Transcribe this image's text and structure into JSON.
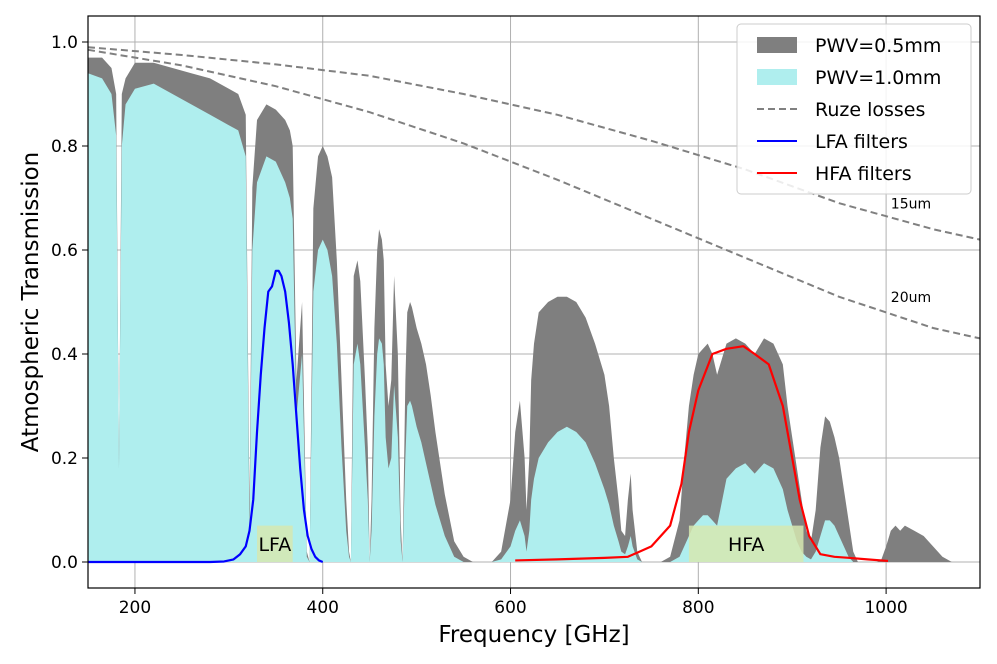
{
  "chart_data": {
    "type": "area",
    "xlabel": "Frequency [GHz]",
    "ylabel": "Atmospheric Transmission",
    "xlim": [
      150,
      1100
    ],
    "ylim": [
      -0.05,
      1.05
    ],
    "xticks": [
      200,
      400,
      600,
      800,
      1000
    ],
    "yticks": [
      0.0,
      0.2,
      0.4,
      0.6,
      0.8,
      1.0
    ],
    "xtick_labels": [
      "200",
      "400",
      "600",
      "800",
      "1000"
    ],
    "ytick_labels": [
      "0.0",
      "0.2",
      "0.4",
      "0.6",
      "0.8",
      "1.0"
    ],
    "grid": true,
    "legend_position": "top-right",
    "legend": [
      {
        "label": "PWV=0.5mm",
        "kind": "patch",
        "color": "#7f7f7f"
      },
      {
        "label": "PWV=1.0mm",
        "kind": "patch",
        "color": "#afeeee"
      },
      {
        "label": "Ruze losses",
        "kind": "dashed-line",
        "color": "#808080"
      },
      {
        "label": "LFA filters",
        "kind": "line",
        "color": "#0000ff"
      },
      {
        "label": "HFA filters",
        "kind": "line",
        "color": "#ff0000"
      }
    ],
    "series": [
      {
        "name": "PWV=0.5mm",
        "type": "area",
        "color": "#7f7f7f",
        "x": [
          150,
          165,
          175,
          180,
          183,
          186,
          190,
          200,
          220,
          240,
          260,
          280,
          300,
          310,
          318,
          322,
          325,
          330,
          340,
          350,
          360,
          365,
          368,
          372,
          378,
          383,
          386,
          390,
          395,
          400,
          405,
          410,
          415,
          420,
          425,
          428,
          430,
          433,
          437,
          440,
          445,
          448,
          450,
          452,
          455,
          458,
          460,
          463,
          465,
          467,
          470,
          473,
          476,
          480,
          483,
          485,
          488,
          490,
          493,
          495,
          500,
          505,
          510,
          515,
          520,
          530,
          540,
          550,
          560,
          570,
          580,
          590,
          600,
          605,
          610,
          615,
          617,
          620,
          622,
          625,
          630,
          640,
          650,
          660,
          670,
          680,
          690,
          700,
          705,
          710,
          715,
          718,
          722,
          725,
          728,
          730,
          735,
          740,
          750,
          760,
          770,
          780,
          785,
          790,
          795,
          800,
          805,
          810,
          815,
          820,
          830,
          840,
          850,
          860,
          870,
          880,
          890,
          895,
          900,
          905,
          910,
          915,
          920,
          925,
          930,
          935,
          940,
          945,
          950,
          955,
          960,
          965,
          970,
          980,
          990,
          995,
          1000,
          1005,
          1010,
          1015,
          1020,
          1030,
          1040,
          1050,
          1060,
          1065,
          1070,
          1080,
          1100
        ],
        "values": [
          0.97,
          0.97,
          0.95,
          0.9,
          0.18,
          0.9,
          0.93,
          0.96,
          0.96,
          0.95,
          0.94,
          0.93,
          0.91,
          0.9,
          0.86,
          0.1,
          0.72,
          0.85,
          0.88,
          0.87,
          0.85,
          0.83,
          0.8,
          0.35,
          0.5,
          0.02,
          0.0,
          0.68,
          0.78,
          0.8,
          0.78,
          0.74,
          0.58,
          0.35,
          0.12,
          0.02,
          0.0,
          0.55,
          0.58,
          0.54,
          0.35,
          0.22,
          0.0,
          0.12,
          0.45,
          0.6,
          0.64,
          0.62,
          0.58,
          0.38,
          0.3,
          0.35,
          0.55,
          0.4,
          0.08,
          0.0,
          0.35,
          0.48,
          0.5,
          0.49,
          0.45,
          0.42,
          0.38,
          0.32,
          0.25,
          0.13,
          0.04,
          0.01,
          0.0,
          0.0,
          0.0,
          0.02,
          0.12,
          0.25,
          0.31,
          0.2,
          0.1,
          0.2,
          0.35,
          0.42,
          0.48,
          0.5,
          0.51,
          0.51,
          0.5,
          0.47,
          0.42,
          0.36,
          0.3,
          0.2,
          0.12,
          0.06,
          0.05,
          0.12,
          0.17,
          0.1,
          0.02,
          0.0,
          0.0,
          0.0,
          0.01,
          0.08,
          0.2,
          0.3,
          0.36,
          0.4,
          0.41,
          0.42,
          0.4,
          0.36,
          0.42,
          0.43,
          0.42,
          0.4,
          0.43,
          0.42,
          0.38,
          0.3,
          0.24,
          0.18,
          0.12,
          0.06,
          0.04,
          0.1,
          0.22,
          0.28,
          0.27,
          0.24,
          0.2,
          0.14,
          0.08,
          0.02,
          0.0,
          0.0,
          0.0,
          0.005,
          0.03,
          0.06,
          0.07,
          0.06,
          0.07,
          0.06,
          0.05,
          0.03,
          0.01,
          0.005,
          0.0,
          0.0,
          0.0
        ]
      },
      {
        "name": "PWV=1.0mm",
        "type": "area",
        "color": "#afeeee",
        "x": [
          150,
          165,
          175,
          180,
          183,
          186,
          190,
          200,
          220,
          240,
          260,
          280,
          300,
          310,
          318,
          322,
          325,
          330,
          340,
          350,
          360,
          365,
          368,
          372,
          378,
          383,
          386,
          390,
          395,
          400,
          405,
          410,
          415,
          420,
          425,
          428,
          430,
          433,
          437,
          440,
          445,
          448,
          450,
          452,
          455,
          458,
          460,
          463,
          465,
          467,
          470,
          473,
          476,
          480,
          483,
          485,
          488,
          490,
          493,
          495,
          500,
          505,
          510,
          515,
          520,
          530,
          540,
          550,
          560,
          570,
          580,
          590,
          600,
          605,
          610,
          615,
          617,
          620,
          622,
          625,
          630,
          640,
          650,
          660,
          670,
          680,
          690,
          700,
          705,
          710,
          715,
          718,
          722,
          725,
          728,
          730,
          735,
          740,
          750,
          760,
          770,
          780,
          785,
          790,
          795,
          800,
          805,
          810,
          815,
          820,
          830,
          840,
          850,
          860,
          870,
          880,
          890,
          895,
          900,
          905,
          910,
          915,
          920,
          925,
          930,
          935,
          940,
          945,
          950,
          955,
          960,
          965,
          970,
          980,
          990,
          995,
          1000,
          1005,
          1010,
          1015,
          1020,
          1030,
          1040,
          1050,
          1060,
          1065,
          1070,
          1080,
          1100
        ],
        "values": [
          0.94,
          0.93,
          0.9,
          0.82,
          0.18,
          0.8,
          0.88,
          0.91,
          0.92,
          0.9,
          0.88,
          0.86,
          0.84,
          0.83,
          0.78,
          0.05,
          0.6,
          0.73,
          0.78,
          0.77,
          0.73,
          0.7,
          0.66,
          0.28,
          0.4,
          0.01,
          0.0,
          0.52,
          0.6,
          0.62,
          0.6,
          0.55,
          0.42,
          0.22,
          0.06,
          0.01,
          0.0,
          0.38,
          0.42,
          0.38,
          0.22,
          0.12,
          0.0,
          0.06,
          0.28,
          0.4,
          0.43,
          0.42,
          0.38,
          0.24,
          0.18,
          0.2,
          0.34,
          0.24,
          0.04,
          0.0,
          0.2,
          0.3,
          0.31,
          0.3,
          0.26,
          0.23,
          0.19,
          0.15,
          0.11,
          0.05,
          0.01,
          0.0,
          0.0,
          0.0,
          0.0,
          0.005,
          0.03,
          0.06,
          0.08,
          0.05,
          0.02,
          0.06,
          0.12,
          0.16,
          0.2,
          0.23,
          0.25,
          0.26,
          0.25,
          0.23,
          0.19,
          0.14,
          0.11,
          0.07,
          0.04,
          0.02,
          0.015,
          0.03,
          0.05,
          0.03,
          0.005,
          0.0,
          0.0,
          0.0,
          0.0,
          0.01,
          0.03,
          0.05,
          0.07,
          0.08,
          0.09,
          0.09,
          0.08,
          0.07,
          0.16,
          0.18,
          0.19,
          0.17,
          0.19,
          0.18,
          0.14,
          0.1,
          0.07,
          0.04,
          0.02,
          0.01,
          0.005,
          0.02,
          0.05,
          0.08,
          0.08,
          0.07,
          0.05,
          0.03,
          0.01,
          0.0,
          0.0,
          0.0,
          0.0,
          0.0,
          0.0,
          0.0,
          0.0,
          0.0,
          0.0,
          0.0,
          0.0,
          0.0,
          0.0,
          0.0,
          0.0,
          0.0,
          0.0
        ]
      },
      {
        "name": "Ruze losses",
        "label": "15um",
        "type": "line",
        "style": "dashed",
        "color": "#808080",
        "x": [
          150,
          250,
          350,
          450,
          550,
          650,
          750,
          850,
          950,
          1050,
          1100
        ],
        "values": [
          0.99,
          0.975,
          0.957,
          0.935,
          0.9,
          0.86,
          0.81,
          0.755,
          0.69,
          0.64,
          0.62
        ]
      },
      {
        "name": "Ruze losses",
        "label": "20um",
        "type": "line",
        "style": "dashed",
        "color": "#808080",
        "x": [
          150,
          250,
          350,
          450,
          550,
          650,
          750,
          850,
          950,
          1050,
          1100
        ],
        "values": [
          0.985,
          0.955,
          0.915,
          0.865,
          0.805,
          0.735,
          0.66,
          0.585,
          0.51,
          0.45,
          0.43
        ]
      },
      {
        "name": "LFA filters",
        "type": "line",
        "color": "#0000ff",
        "x": [
          150,
          200,
          250,
          280,
          295,
          305,
          312,
          318,
          322,
          326,
          330,
          334,
          338,
          342,
          346,
          350,
          353,
          356,
          360,
          364,
          368,
          372,
          376,
          380,
          384,
          388,
          392,
          396,
          400
        ],
        "values": [
          0.0,
          0.0,
          0.0,
          0.0,
          0.001,
          0.005,
          0.015,
          0.03,
          0.06,
          0.12,
          0.25,
          0.36,
          0.45,
          0.52,
          0.53,
          0.56,
          0.56,
          0.55,
          0.52,
          0.46,
          0.38,
          0.28,
          0.18,
          0.1,
          0.05,
          0.025,
          0.01,
          0.003,
          0.0
        ]
      },
      {
        "name": "HFA filters",
        "type": "line",
        "color": "#ff0000",
        "x": [
          605,
          650,
          700,
          725,
          750,
          770,
          782,
          790,
          800,
          815,
          830,
          848,
          860,
          875,
          890,
          900,
          908,
          918,
          930,
          945,
          960,
          980,
          1002
        ],
        "values": [
          0.003,
          0.005,
          0.008,
          0.01,
          0.03,
          0.07,
          0.15,
          0.25,
          0.33,
          0.4,
          0.41,
          0.415,
          0.4,
          0.38,
          0.3,
          0.2,
          0.12,
          0.05,
          0.015,
          0.01,
          0.008,
          0.005,
          0.002
        ]
      }
    ],
    "bands": [
      {
        "label": "LFA",
        "x": [
          330,
          368
        ],
        "y": [
          0.0,
          0.07
        ],
        "color": "#d6e8b0"
      },
      {
        "label": "HFA",
        "x": [
          790,
          912
        ],
        "y": [
          0.0,
          0.07
        ],
        "color": "#d6e8b0"
      }
    ],
    "annotations": [
      {
        "text": "15um",
        "x": 1005,
        "y": 0.68
      },
      {
        "text": "20um",
        "x": 1005,
        "y": 0.5
      }
    ]
  }
}
